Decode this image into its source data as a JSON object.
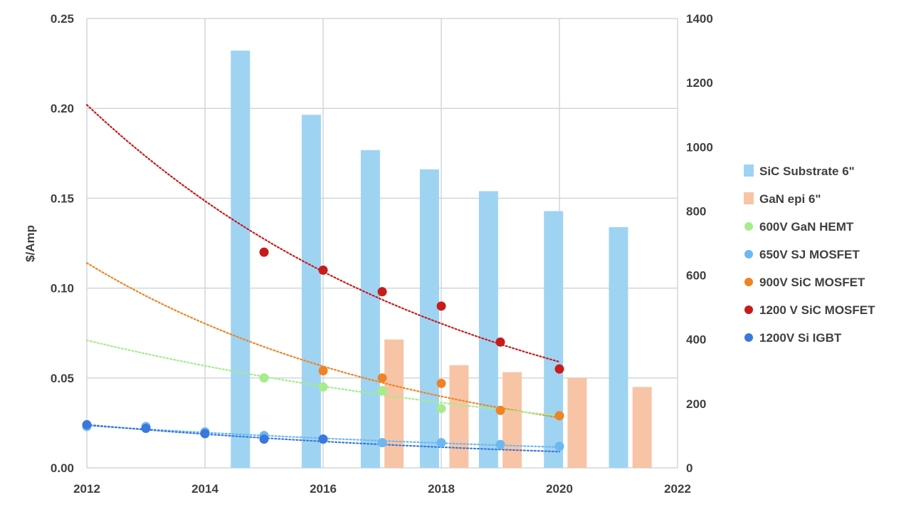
{
  "chart_data": {
    "type": "bar",
    "title": "",
    "xlabel": "",
    "ylabel": "$/Amp",
    "y2label": "",
    "xlim": [
      2012,
      2022
    ],
    "ylim": [
      0,
      0.25
    ],
    "y2lim": [
      0,
      1400
    ],
    "grid": true,
    "legend_position": "right",
    "x_ticks": [
      "2012",
      "2014",
      "2016",
      "2018",
      "2020",
      "2022"
    ],
    "y_ticks": [
      "0.00",
      "0.05",
      "0.10",
      "0.15",
      "0.20",
      "0.25"
    ],
    "y2_ticks": [
      "0",
      "200",
      "400",
      "600",
      "800",
      "1000",
      "1200",
      "1400"
    ],
    "colors": {
      "sic_substrate": "#9fd3f2",
      "gan_epi": "#f8c4a6",
      "gan_hemt": "#a6ec8c",
      "sj_mosfet": "#6cb8ef",
      "sic_900": "#ee8425",
      "sic_1200": "#c81b1b",
      "igbt": "#3a78dc",
      "grid": "#cfd7dd"
    },
    "bar_series": [
      {
        "name": "SiC Substrate 6\"",
        "axis": "right",
        "color_key": "sic_substrate",
        "x": [
          2014.6,
          2015.8,
          2016.8,
          2017.8,
          2018.8,
          2019.9,
          2021.0
        ],
        "values": [
          1300,
          1100,
          990,
          930,
          862,
          800,
          750
        ]
      },
      {
        "name": "GaN epi 6\"",
        "axis": "right",
        "color_key": "gan_epi",
        "x": [
          2017.2,
          2018.3,
          2019.2,
          2020.3,
          2021.4
        ],
        "values": [
          400,
          320,
          298,
          280,
          252
        ]
      }
    ],
    "scatter_series": [
      {
        "name": "600V GaN HEMT",
        "color_key": "gan_hemt",
        "x": [
          2015,
          2016,
          2017,
          2018,
          2019,
          2020
        ],
        "values": [
          0.05,
          0.045,
          0.043,
          0.033,
          0.032,
          0.029
        ]
      },
      {
        "name": "650V SJ MOSFET",
        "color_key": "sj_mosfet",
        "x": [
          2012,
          2013,
          2014,
          2015,
          2016,
          2017,
          2018,
          2019,
          2020
        ],
        "values": [
          0.023,
          0.023,
          0.02,
          0.018,
          0.016,
          0.014,
          0.014,
          0.013,
          0.012
        ]
      },
      {
        "name": "900V SiC MOSFET",
        "color_key": "sic_900",
        "x": [
          2016,
          2017,
          2018,
          2019,
          2020
        ],
        "values": [
          0.054,
          0.05,
          0.047,
          0.032,
          0.029
        ]
      },
      {
        "name": "1200 V SiC MOSFET",
        "color_key": "sic_1200",
        "x": [
          2015,
          2016,
          2017,
          2018,
          2019,
          2020
        ],
        "values": [
          0.12,
          0.11,
          0.098,
          0.09,
          0.07,
          0.055
        ]
      },
      {
        "name": "1200V Si IGBT",
        "color_key": "igbt",
        "x": [
          2012,
          2013,
          2014,
          2015,
          2016
        ],
        "values": [
          0.024,
          0.022,
          0.019,
          0.016,
          0.016
        ]
      }
    ],
    "trendlines": [
      {
        "color_key": "sic_1200",
        "x": [
          2012,
          2020
        ],
        "values": [
          0.202,
          0.059
        ]
      },
      {
        "color_key": "sic_900",
        "x": [
          2012,
          2020
        ],
        "values": [
          0.114,
          0.028
        ]
      },
      {
        "color_key": "gan_hemt",
        "x": [
          2012,
          2020
        ],
        "values": [
          0.071,
          0.029
        ]
      },
      {
        "color_key": "sj_mosfet",
        "x": [
          2012,
          2020
        ],
        "values": [
          0.0235,
          0.0115
        ]
      },
      {
        "color_key": "igbt",
        "x": [
          2012,
          2020
        ],
        "values": [
          0.024,
          0.009
        ]
      }
    ]
  }
}
